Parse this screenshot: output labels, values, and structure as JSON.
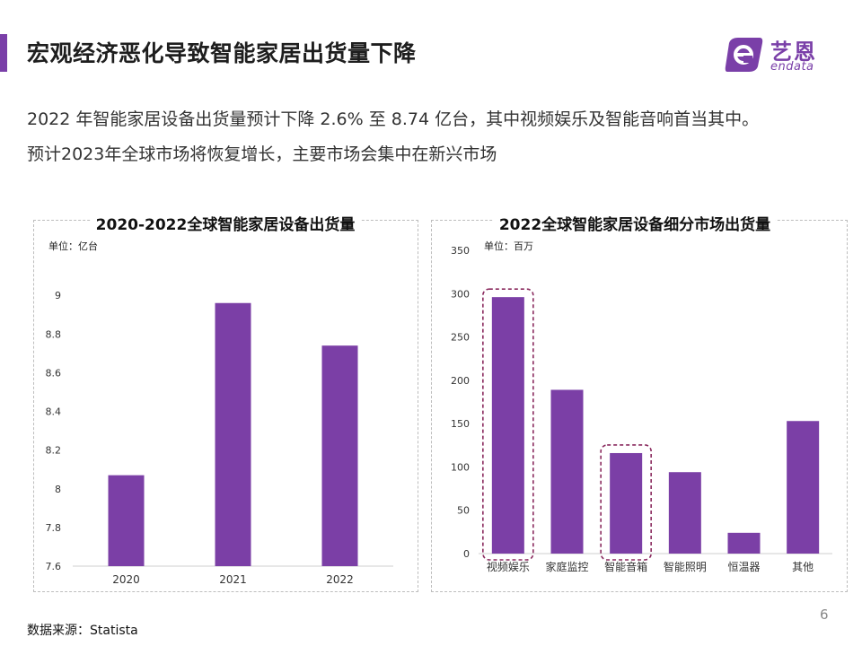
{
  "header": {
    "title": "宏观经济恶化导致智能家居出货量下降",
    "accent_color": "#7a3fa8"
  },
  "logo": {
    "cn": "艺恩",
    "en": "endata",
    "icon": "endata-logo-icon"
  },
  "body": {
    "line1": "2022 年智能家居设备出货量预计下降 2.6% 至 8.74 亿台，其中视频娱乐及智能音响首当其中。",
    "line2": "预计2023年全球市场将恢复增长，主要市场会集中在新兴市场"
  },
  "chart_data": [
    {
      "type": "bar",
      "title": "2020-2022全球智能家居设备出货量",
      "unit": "单位：亿台",
      "categories": [
        "2020",
        "2021",
        "2022"
      ],
      "values": [
        8.07,
        8.96,
        8.74
      ],
      "ylim": [
        7.6,
        9.2
      ],
      "yticks": [
        7.6,
        7.8,
        8,
        8.2,
        8.4,
        8.6,
        8.8,
        9
      ],
      "bar_color": "#7b3fa6",
      "grid": false
    },
    {
      "type": "bar",
      "title": "2022全球智能家居设备细分市场出货量",
      "unit": "单位：百万",
      "categories": [
        "视频娱乐",
        "家庭监控",
        "智能音箱",
        "智能照明",
        "恒温器",
        "其他"
      ],
      "values": [
        296,
        189,
        116,
        94,
        24,
        153
      ],
      "ylim": [
        0,
        350
      ],
      "yticks": [
        0,
        50,
        100,
        150,
        200,
        250,
        300,
        350
      ],
      "highlighted": [
        "视频娱乐",
        "智能音箱"
      ],
      "bar_color": "#7b3fa6",
      "highlight_color": "#8a2a5e",
      "grid": false
    }
  ],
  "footer": {
    "source": "数据来源：Statista",
    "page": "6"
  }
}
